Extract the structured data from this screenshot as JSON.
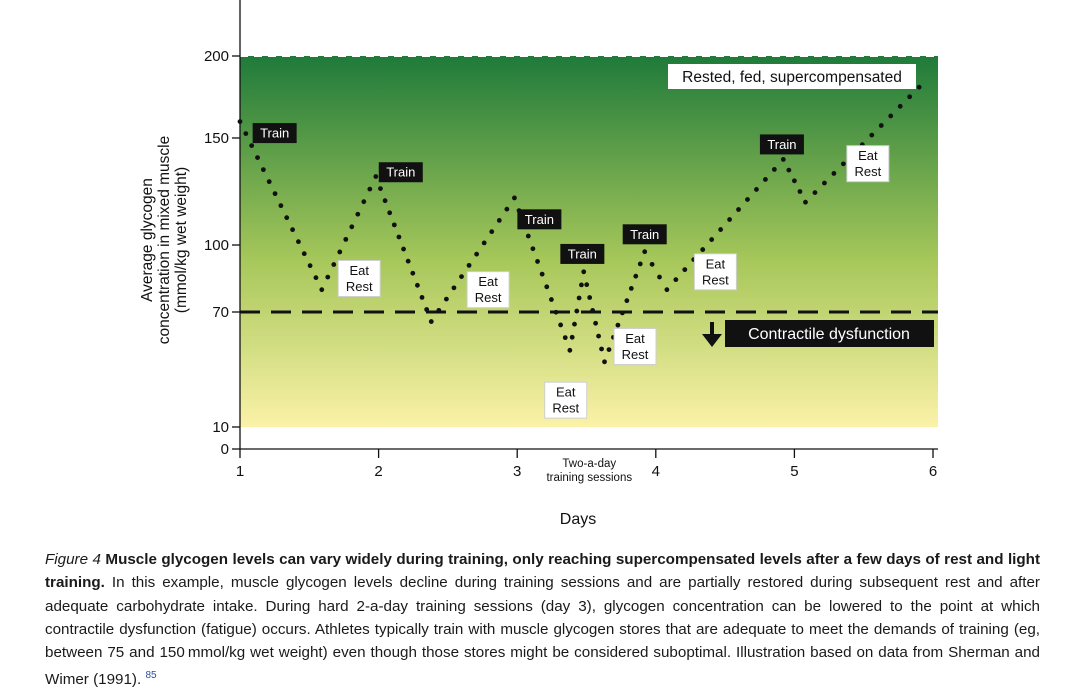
{
  "chart_data": {
    "type": "line",
    "xlabel": "Days",
    "ylabel_lines": [
      "Average glycogen",
      "concentration in mixed muscle",
      "(mmol/kg wet weight)"
    ],
    "x_ticks": [
      1,
      2,
      3,
      4,
      5,
      6
    ],
    "y_ticks": [
      0,
      10,
      70,
      100,
      150,
      200
    ],
    "xlim": [
      1,
      6
    ],
    "ylim": [
      0,
      200
    ],
    "grid": false,
    "background": {
      "type": "vertical gradient",
      "top_color": "#1f7a3a",
      "bottom_color": "#fbf2a8"
    },
    "threshold": {
      "value": 70,
      "style": "dashed",
      "label": "Contractile dysfunction"
    },
    "top_label": "Rested, fed, supercompensated",
    "series": [
      {
        "points": [
          [
            1.0,
            160
          ],
          [
            1.59,
            80
          ],
          [
            1.98,
            132
          ],
          [
            2.38,
            65
          ],
          [
            2.98,
            122
          ],
          [
            3.38,
            50
          ],
          [
            3.48,
            88
          ],
          [
            3.63,
            44
          ],
          [
            3.92,
            97
          ],
          [
            4.08,
            80
          ],
          [
            4.92,
            140
          ],
          [
            5.08,
            120
          ],
          [
            5.9,
            181
          ]
        ]
      }
    ],
    "annotations": [
      {
        "text": "Train",
        "x": 1.25,
        "y": 153,
        "style": "dark"
      },
      {
        "text": "Train",
        "x": 2.16,
        "y": 134,
        "style": "dark"
      },
      {
        "text": "Train",
        "x": 3.16,
        "y": 112,
        "style": "dark"
      },
      {
        "text": "Train",
        "x": 3.47,
        "y": 96,
        "style": "dark"
      },
      {
        "text": "Train",
        "x": 3.92,
        "y": 105,
        "style": "dark"
      },
      {
        "text": "Train",
        "x": 4.91,
        "y": 147,
        "style": "dark"
      },
      {
        "text": "Eat\nRest",
        "x": 1.86,
        "y": 85,
        "style": "light"
      },
      {
        "text": "Eat\nRest",
        "x": 2.79,
        "y": 80,
        "style": "light"
      },
      {
        "text": "Eat\nRest",
        "x": 3.35,
        "y": 24,
        "style": "light"
      },
      {
        "text": "Eat\nRest",
        "x": 3.85,
        "y": 52,
        "style": "light"
      },
      {
        "text": "Eat\nRest",
        "x": 4.43,
        "y": 88,
        "style": "light"
      },
      {
        "text": "Eat\nRest",
        "x": 5.53,
        "y": 138,
        "style": "light"
      }
    ],
    "x_note": {
      "text": [
        "Two-a-day",
        "training sessions"
      ],
      "x": 3.52
    }
  },
  "caption": {
    "label": "Figure 4",
    "title": "Muscle glycogen levels can vary widely during training, only reaching supercompensated levels after a few days of rest and light training.",
    "body": "In this example, muscle glycogen levels decline during training sessions and are partially restored during subsequent rest and after adequate carbohydrate intake. During hard 2-a-day training sessions (day 3), glycogen concentration can be lowered to the point at which contractile dysfunction (fatigue) occurs. Athletes typically train with muscle glycogen stores that are adequate to meet the demands of training (eg, between 75 and 150 mmol/kg wet weight) even though those stores might be considered suboptimal. Illustration based on data from Sherman and Wimer (1991).",
    "ref": "85"
  },
  "colors": {
    "gradient_top": "#1f7a3a",
    "gradient_bottom": "#fbf2a8",
    "label_dark": "#111111",
    "label_light": "#ffffff",
    "dots": "#111111"
  }
}
